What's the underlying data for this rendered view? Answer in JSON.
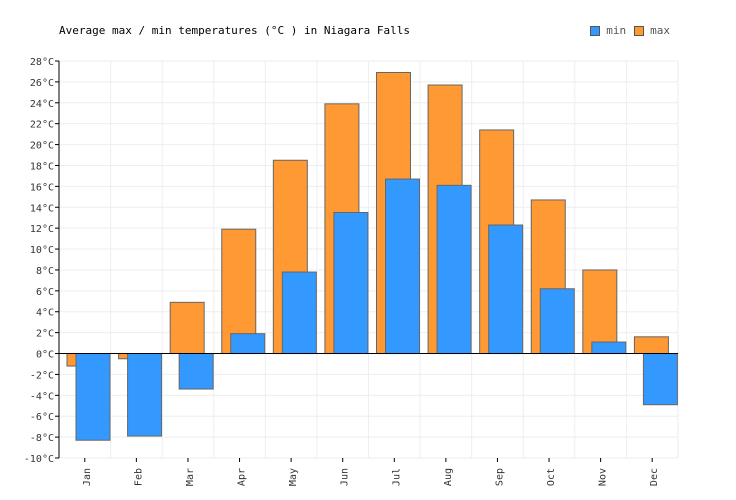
{
  "chart_data": {
    "type": "bar",
    "title": "Average max / min temperatures (°C ) in Niagara Falls",
    "categories": [
      "Jan",
      "Feb",
      "Mar",
      "Apr",
      "May",
      "Jun",
      "Jul",
      "Aug",
      "Sep",
      "Oct",
      "Nov",
      "Dec"
    ],
    "series": [
      {
        "name": "min",
        "color": "#3399ff",
        "values": [
          -8.3,
          -7.9,
          -3.4,
          1.9,
          7.8,
          13.5,
          16.7,
          16.1,
          12.3,
          6.2,
          1.1,
          -4.9
        ]
      },
      {
        "name": "max",
        "color": "#ff9933",
        "values": [
          -1.2,
          -0.5,
          4.9,
          11.9,
          18.5,
          23.9,
          26.9,
          25.7,
          21.4,
          14.7,
          8.0,
          1.6
        ]
      }
    ],
    "yunit": "°C",
    "ylim": [
      -10,
      28
    ],
    "ytick_step": 2,
    "grid": true,
    "legend": "top-right"
  }
}
